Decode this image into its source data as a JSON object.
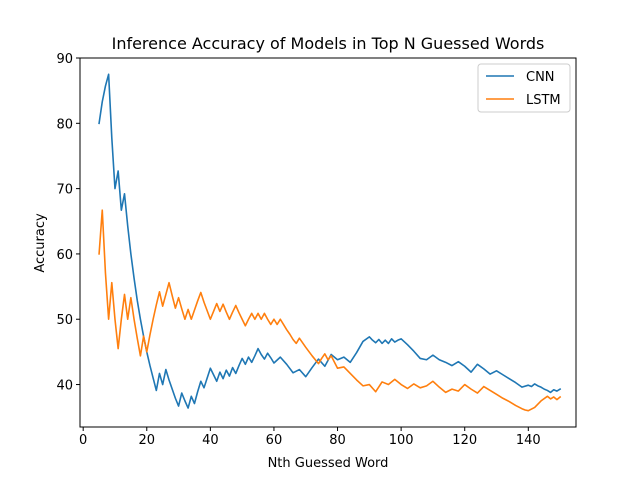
{
  "chart_data": {
    "type": "line",
    "title": "Inference Accuracy of Models in Top N Guessed Words",
    "xlabel": "Nth Guessed Word",
    "ylabel": "Accuracy",
    "xlim": [
      -1,
      155
    ],
    "ylim": [
      33.5,
      90
    ],
    "xticks": [
      0,
      20,
      40,
      60,
      80,
      100,
      120,
      140
    ],
    "yticks": [
      40,
      50,
      60,
      70,
      80,
      90
    ],
    "grid": false,
    "legend_position": "top-right",
    "series": [
      {
        "name": "CNN",
        "color": "#1f77b4",
        "x": [
          5,
          6,
          7,
          8,
          9,
          10,
          11,
          12,
          13,
          14,
          15,
          16,
          17,
          18,
          19,
          20,
          21,
          22,
          23,
          24,
          25,
          26,
          27,
          28,
          29,
          30,
          31,
          32,
          33,
          34,
          35,
          36,
          37,
          38,
          39,
          40,
          41,
          42,
          43,
          44,
          45,
          46,
          47,
          48,
          49,
          50,
          51,
          52,
          53,
          54,
          55,
          56,
          57,
          58,
          59,
          60,
          62,
          64,
          66,
          68,
          70,
          72,
          74,
          76,
          78,
          80,
          82,
          84,
          86,
          88,
          90,
          91,
          92,
          93,
          94,
          95,
          96,
          97,
          98,
          99,
          100,
          102,
          104,
          106,
          108,
          110,
          112,
          114,
          116,
          118,
          120,
          122,
          124,
          126,
          128,
          130,
          132,
          134,
          136,
          138,
          140,
          141,
          142,
          143,
          144,
          145,
          146,
          147,
          148,
          149,
          150
        ],
        "values": [
          80,
          83.3,
          85.7,
          87.5,
          77.8,
          70,
          72.7,
          66.7,
          69.2,
          64.3,
          60,
          56.3,
          52.9,
          50,
          47.4,
          45,
          42.9,
          41,
          39.1,
          41.7,
          40,
          42.3,
          40.7,
          39.3,
          37.9,
          36.7,
          38.7,
          37.5,
          36.4,
          38.2,
          37.1,
          38.9,
          40.5,
          39.5,
          41,
          42.5,
          41.5,
          40.5,
          41.9,
          40.9,
          42.2,
          41.3,
          42.6,
          41.7,
          42.9,
          44,
          43.1,
          44.2,
          43.4,
          44.4,
          45.5,
          44.6,
          43.9,
          44.8,
          44.1,
          43.3,
          44.2,
          43.1,
          41.8,
          42.3,
          41.2,
          42.6,
          43.9,
          42.8,
          44.6,
          43.8,
          44.2,
          43.4,
          44.9,
          46.6,
          47.3,
          46.8,
          46.4,
          46.9,
          46.3,
          46.8,
          46.3,
          47,
          46.5,
          46.8,
          47,
          46.1,
          45.1,
          44,
          43.8,
          44.5,
          43.8,
          43.4,
          42.9,
          43.5,
          42.8,
          41.9,
          43.1,
          42.4,
          41.6,
          42.1,
          41.5,
          40.9,
          40.3,
          39.6,
          39.9,
          39.7,
          40.1,
          39.8,
          39.6,
          39.3,
          39.1,
          38.8,
          39.2,
          39,
          39.3
        ]
      },
      {
        "name": "LSTM",
        "color": "#ff7f0e",
        "x": [
          5,
          6,
          7,
          8,
          9,
          10,
          11,
          12,
          13,
          14,
          15,
          16,
          17,
          18,
          19,
          20,
          21,
          22,
          23,
          24,
          25,
          26,
          27,
          28,
          29,
          30,
          31,
          32,
          33,
          34,
          35,
          36,
          37,
          38,
          39,
          40,
          41,
          42,
          43,
          44,
          45,
          46,
          47,
          48,
          49,
          50,
          51,
          52,
          53,
          54,
          55,
          56,
          57,
          58,
          59,
          60,
          61,
          62,
          63,
          64,
          65,
          66,
          67,
          68,
          70,
          72,
          74,
          75,
          76,
          77,
          78,
          80,
          82,
          84,
          86,
          88,
          90,
          92,
          94,
          96,
          98,
          100,
          102,
          104,
          106,
          108,
          110,
          112,
          114,
          116,
          118,
          120,
          122,
          124,
          126,
          128,
          130,
          132,
          134,
          136,
          138,
          139,
          140,
          142,
          144,
          146,
          147,
          148,
          149,
          150
        ],
        "values": [
          60,
          66.7,
          57.1,
          50,
          55.6,
          50,
          45.5,
          50,
          53.8,
          50,
          53.3,
          50,
          47.1,
          44.4,
          47.4,
          45,
          47.6,
          50,
          52.2,
          54.2,
          52,
          53.8,
          55.6,
          53.6,
          51.7,
          53.3,
          51.6,
          50,
          51.5,
          50,
          51.4,
          52.8,
          54.1,
          52.6,
          51.3,
          50,
          51.2,
          52.4,
          51.2,
          52.3,
          51.1,
          50,
          51.1,
          52.1,
          51,
          50,
          49,
          50,
          50.9,
          50,
          50.9,
          50,
          50.9,
          50,
          49.2,
          50,
          49.2,
          50,
          49.2,
          48.4,
          47.7,
          46.9,
          46.3,
          47.1,
          45.7,
          44.4,
          43.2,
          44,
          44.7,
          43.8,
          44.4,
          42.5,
          42.7,
          41.7,
          40.7,
          39.8,
          40,
          38.9,
          40.4,
          40,
          40.8,
          40,
          39.4,
          40.1,
          39.5,
          39.8,
          40.5,
          39.6,
          38.8,
          39.3,
          39,
          40,
          39.3,
          38.7,
          39.7,
          39.1,
          38.5,
          37.9,
          37.4,
          36.8,
          36.3,
          36.1,
          36,
          36.5,
          37.5,
          38.2,
          37.8,
          38.1,
          37.7,
          38.1
        ]
      }
    ]
  }
}
